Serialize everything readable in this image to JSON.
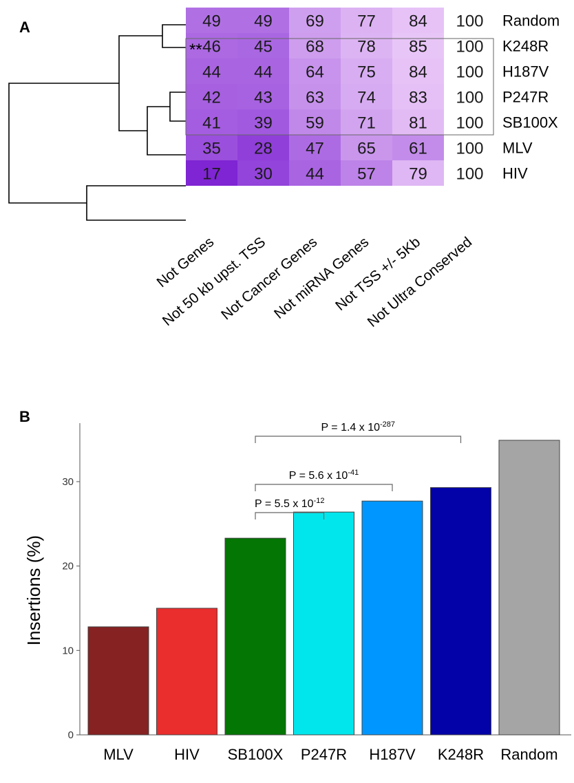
{
  "panel_a": {
    "label": "A",
    "annotation": "**",
    "rows": [
      "Random",
      "K248R",
      "H187V",
      "P247R",
      "SB100X",
      "MLV",
      "HIV"
    ],
    "columns": [
      "Not Genes",
      "Not 50 kb upst. TSS",
      "Not Cancer Genes",
      "Not miRNA Genes",
      "Not TSS +/- 5Kb",
      "Not Ultra Conserved"
    ],
    "highlighted_rows": [
      "K248R",
      "H187V",
      "P247R"
    ],
    "colors": {
      "low": "#7f25d3",
      "high": "#ffe8ff",
      "tree": "#000000"
    }
  },
  "panel_b": {
    "label": "B",
    "brackets": [
      {
        "from": "SB100X",
        "to": "P247R",
        "text": "P = 5.5 x 10",
        "exponent": "-12"
      },
      {
        "from": "SB100X",
        "to": "H187V",
        "text": "P = 5.6 x 10",
        "exponent": "-41"
      },
      {
        "from": "SB100X",
        "to": "K248R",
        "text": "P = 1.4 x 10",
        "exponent": "-287"
      }
    ]
  },
  "chart_data": [
    {
      "type": "heatmap",
      "x": [
        "Not Genes",
        "Not 50 kb upst. TSS",
        "Not Cancer Genes",
        "Not miRNA Genes",
        "Not TSS +/- 5Kb",
        "Not Ultra Conserved"
      ],
      "y": [
        "Random",
        "K248R",
        "H187V",
        "P247R",
        "SB100X",
        "MLV",
        "HIV"
      ],
      "values": [
        [
          49,
          49,
          69,
          77,
          84,
          100
        ],
        [
          46,
          45,
          68,
          78,
          85,
          100
        ],
        [
          44,
          44,
          64,
          75,
          84,
          100
        ],
        [
          42,
          43,
          63,
          74,
          83,
          100
        ],
        [
          41,
          39,
          59,
          71,
          81,
          100
        ],
        [
          35,
          28,
          47,
          65,
          61,
          100
        ],
        [
          17,
          30,
          44,
          57,
          79,
          100
        ]
      ]
    },
    {
      "type": "bar",
      "categories": [
        "MLV",
        "HIV",
        "SB100X",
        "P247R",
        "H187V",
        "K248R",
        "Random"
      ],
      "values": [
        12.8,
        15.0,
        23.3,
        26.4,
        27.7,
        29.3,
        34.9
      ],
      "colors": [
        "#862222",
        "#ea2d2d",
        "#037603",
        "#00e6ec",
        "#0096ff",
        "#0202a8",
        "#a5a5a5"
      ],
      "ylabel": "Insertions (%)",
      "yticks": [
        0,
        10,
        20,
        30
      ],
      "ylim": [
        0,
        36
      ]
    }
  ]
}
